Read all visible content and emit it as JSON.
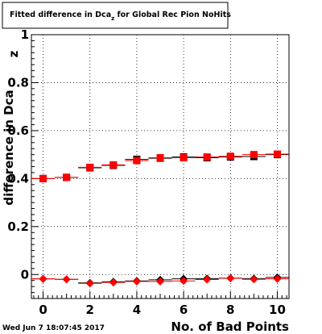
{
  "chart_data": {
    "type": "scatter",
    "title": "Fitted difference in Dca",
    "title_subscript": "z",
    "title_suffix": " for Global Rec Pion NoHits",
    "xlabel": "No. of Bad Points",
    "ylabel": "difference in Dca",
    "ylabel_subscript": "z",
    "xlim": [
      -0.5,
      10.5
    ],
    "ylim": [
      -0.1,
      1.0
    ],
    "x_ticks": [
      0,
      2,
      4,
      6,
      8,
      10
    ],
    "y_ticks": [
      0,
      0.2,
      0.4,
      0.6,
      0.8,
      1
    ],
    "y_tick_labels": [
      "0",
      "0.2",
      "0.4",
      "0.6",
      "0.8",
      "1"
    ],
    "x_tick_labels": [
      "0",
      "2",
      "4",
      "6",
      "8",
      "10"
    ],
    "grid": true,
    "series": [
      {
        "marker": "square",
        "color": "#000000",
        "x": [
          0,
          1,
          2,
          3,
          4,
          5,
          6,
          7,
          8,
          9,
          10
        ],
        "y": [
          0.4,
          0.405,
          0.445,
          0.455,
          0.48,
          0.485,
          0.49,
          0.487,
          0.49,
          0.492,
          0.5
        ]
      },
      {
        "marker": "square",
        "color": "#ff0000",
        "x": [
          0,
          1,
          2,
          3,
          4,
          5,
          6,
          7,
          8,
          9,
          10
        ],
        "y": [
          0.4,
          0.405,
          0.447,
          0.457,
          0.475,
          0.487,
          0.487,
          0.49,
          0.493,
          0.5,
          0.502
        ]
      },
      {
        "marker": "diamond",
        "color": "#000000",
        "x": [
          0,
          1,
          2,
          3,
          4,
          5,
          6,
          7,
          8,
          9,
          10
        ],
        "y": [
          -0.018,
          -0.02,
          -0.035,
          -0.03,
          -0.027,
          -0.022,
          -0.018,
          -0.017,
          -0.015,
          -0.017,
          -0.012
        ]
      },
      {
        "marker": "diamond",
        "color": "#ff0000",
        "x": [
          0,
          1,
          2,
          3,
          4,
          5,
          6,
          7,
          8,
          9,
          10
        ],
        "y": [
          -0.018,
          -0.02,
          -0.037,
          -0.033,
          -0.029,
          -0.029,
          -0.027,
          -0.021,
          -0.016,
          -0.02,
          -0.018
        ]
      }
    ]
  },
  "footer": {
    "timestamp": "Wed Jun  7 18:07:45 2017"
  }
}
